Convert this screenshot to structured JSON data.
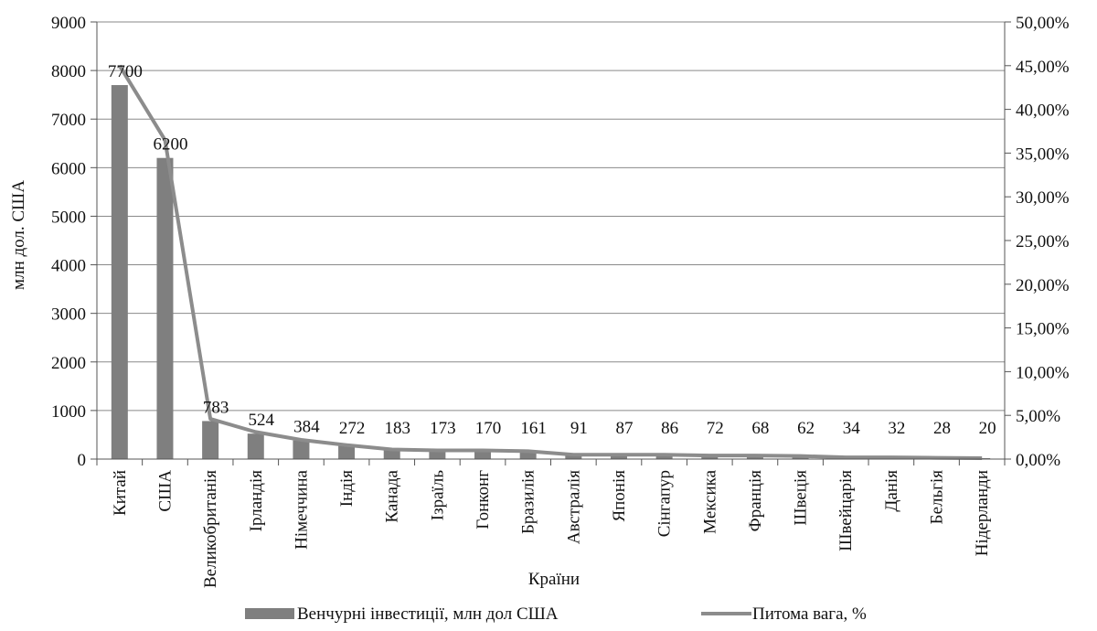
{
  "chart_data": {
    "type": "bar",
    "categories": [
      "Китай",
      "США",
      "Великобританія",
      "Ірландія",
      "Німеччина",
      "Індія",
      "Канада",
      "Ізраїль",
      "Гонконг",
      "Бразилія",
      "Австралія",
      "Японія",
      "Сінгапур",
      "Мексика",
      "Франція",
      "Швеція",
      "Швейцарія",
      "Данія",
      "Бельгія",
      "Нідерланди"
    ],
    "series": [
      {
        "name": "Венчурні інвестиції, млн дол США",
        "kind": "bar",
        "axis": "left",
        "color": "#7f7f7f",
        "values": [
          7700,
          6200,
          783,
          524,
          384,
          272,
          183,
          173,
          170,
          161,
          91,
          87,
          86,
          72,
          68,
          62,
          34,
          32,
          28,
          20
        ]
      },
      {
        "name": "Питома вага, %",
        "kind": "line",
        "axis": "right",
        "color": "#8c8c8c",
        "values": [
          45.0,
          36.5,
          4.6,
          3.1,
          2.2,
          1.6,
          1.1,
          1.0,
          1.0,
          0.9,
          0.5,
          0.5,
          0.5,
          0.4,
          0.4,
          0.35,
          0.2,
          0.2,
          0.15,
          0.1
        ]
      }
    ],
    "xlabel": "Країни",
    "ylabel": "млн дол. США",
    "ylim": [
      0,
      9000
    ],
    "yticks": [
      "0",
      "1000",
      "2000",
      "3000",
      "4000",
      "5000",
      "6000",
      "7000",
      "8000",
      "9000"
    ],
    "y2lim": [
      0,
      50
    ],
    "y2ticks": [
      "0,00%",
      "5,00%",
      "10,00%",
      "15,00%",
      "20,00%",
      "25,00%",
      "30,00%",
      "35,00%",
      "40,00%",
      "45,00%",
      "50,00%"
    ],
    "grid": true,
    "legend_position": "bottom"
  }
}
